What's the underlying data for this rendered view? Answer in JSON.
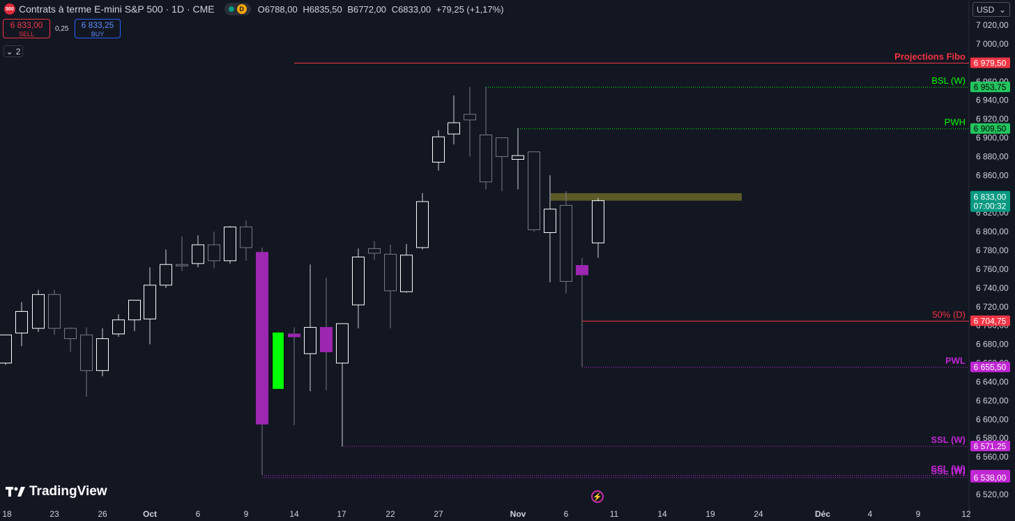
{
  "header": {
    "symbol_badge": "500",
    "title": "Contrats à terme E-mini S&P 500 · 1D · CME",
    "status_badge": "D",
    "ohlc": [
      {
        "k": "O",
        "v": "6788,00"
      },
      {
        "k": "H",
        "v": "6835,50"
      },
      {
        "k": "B",
        "v": "6772,00"
      },
      {
        "k": "C",
        "v": "6833,00"
      }
    ],
    "change": "+79,25 (+1,17%)"
  },
  "trade": {
    "sell_price": "6 833,00",
    "sell_label": "SELL",
    "spread": "0,25",
    "buy_price": "6 833,25",
    "buy_label": "BUY"
  },
  "indicators_toggle": "2",
  "currency": "USD",
  "brand": "TradingView",
  "colors": {
    "bg": "#131722",
    "up": "#ffffff",
    "magenta": "#9c27b0",
    "green": "#00ff00",
    "red": "#f23645",
    "teal": "#089981"
  },
  "chart_data": {
    "type": "candlestick",
    "y_axis": {
      "min": 6510,
      "max": 7030,
      "ticks": [
        "7 020,00",
        "7 000,00",
        "6 980,00",
        "6 960,00",
        "6 940,00",
        "6 920,00",
        "6 900,00",
        "6 880,00",
        "6 860,00",
        "6 840,00",
        "6 820,00",
        "6 800,00",
        "6 780,00",
        "6 760,00",
        "6 740,00",
        "6 720,00",
        "6 700,00",
        "6 680,00",
        "6 660,00",
        "6 640,00",
        "6 620,00",
        "6 600,00",
        "6 580,00",
        "6 560,00",
        "6 540,00",
        "6 520,00"
      ]
    },
    "x_axis": {
      "ticks": [
        "18",
        "23",
        "26",
        "Oct",
        "6",
        "9",
        "14",
        "17",
        "22",
        "27",
        "Nov",
        "6",
        "11",
        "14",
        "19",
        "24",
        "Déc",
        "4",
        "9",
        "12"
      ]
    },
    "candles": [
      {
        "o": 6660,
        "h": 6690,
        "l": 6658,
        "c": 6690,
        "color": "white"
      },
      {
        "o": 6692,
        "h": 6725,
        "l": 6678,
        "c": 6715,
        "color": "white"
      },
      {
        "o": 6697,
        "h": 6738,
        "l": 6693,
        "c": 6733,
        "color": "white"
      },
      {
        "o": 6733,
        "h": 6738,
        "l": 6690,
        "c": 6697,
        "color": "dark"
      },
      {
        "o": 6697,
        "h": 6698,
        "l": 6672,
        "c": 6686,
        "color": "dark"
      },
      {
        "o": 6690,
        "h": 6698,
        "l": 6624,
        "c": 6652,
        "color": "dark"
      },
      {
        "o": 6652,
        "h": 6697,
        "l": 6646,
        "c": 6686,
        "color": "white"
      },
      {
        "o": 6691,
        "h": 6712,
        "l": 6688,
        "c": 6706,
        "color": "white"
      },
      {
        "o": 6706,
        "h": 6727,
        "l": 6694,
        "c": 6727,
        "color": "white"
      },
      {
        "o": 6707,
        "h": 6762,
        "l": 6680,
        "c": 6743,
        "color": "white"
      },
      {
        "o": 6743,
        "h": 6781,
        "l": 6740,
        "c": 6765,
        "color": "white"
      },
      {
        "o": 6764,
        "h": 6795,
        "l": 6758,
        "c": 6765,
        "color": "dark"
      },
      {
        "o": 6766,
        "h": 6796,
        "l": 6762,
        "c": 6786,
        "color": "white"
      },
      {
        "o": 6786,
        "h": 6800,
        "l": 6761,
        "c": 6769,
        "color": "dark"
      },
      {
        "o": 6769,
        "h": 6806,
        "l": 6766,
        "c": 6805,
        "color": "white"
      },
      {
        "o": 6805,
        "h": 6812,
        "l": 6769,
        "c": 6783,
        "color": "dark"
      },
      {
        "o": 6778,
        "h": 6783,
        "l": 6541,
        "c": 6595,
        "color": "magenta"
      },
      {
        "o": 6632,
        "h": 6694,
        "l": 6632,
        "c": 6693,
        "color": "green"
      },
      {
        "o": 6691,
        "h": 6698,
        "l": 6594,
        "c": 6688,
        "color": "magenta"
      },
      {
        "o": 6670,
        "h": 6765,
        "l": 6630,
        "c": 6698,
        "color": "white"
      },
      {
        "o": 6698,
        "h": 6751,
        "l": 6631,
        "c": 6672,
        "color": "magenta"
      },
      {
        "o": 6660,
        "h": 6700,
        "l": 6571,
        "c": 6702,
        "color": "white"
      },
      {
        "o": 6722,
        "h": 6782,
        "l": 6697,
        "c": 6773,
        "color": "white"
      },
      {
        "o": 6777,
        "h": 6790,
        "l": 6770,
        "c": 6782,
        "color": "dark"
      },
      {
        "o": 6776,
        "h": 6786,
        "l": 6697,
        "c": 6737,
        "color": "dark"
      },
      {
        "o": 6736,
        "h": 6787,
        "l": 6735,
        "c": 6775,
        "color": "white"
      },
      {
        "o": 6783,
        "h": 6841,
        "l": 6781,
        "c": 6832,
        "color": "white"
      },
      {
        "o": 6874,
        "h": 6908,
        "l": 6865,
        "c": 6901,
        "color": "white"
      },
      {
        "o": 6904,
        "h": 6945,
        "l": 6893,
        "c": 6916,
        "color": "white"
      },
      {
        "o": 6919,
        "h": 6954,
        "l": 6880,
        "c": 6925,
        "color": "dark"
      },
      {
        "o": 6903,
        "h": 6954,
        "l": 6845,
        "c": 6853,
        "color": "dark"
      },
      {
        "o": 6880,
        "h": 6897,
        "l": 6843,
        "c": 6900,
        "color": "dark"
      },
      {
        "o": 6881,
        "h": 6910,
        "l": 6845,
        "c": 6877,
        "color": "white"
      },
      {
        "o": 6885,
        "h": 6885,
        "l": 6800,
        "c": 6802,
        "color": "dark"
      },
      {
        "o": 6799,
        "h": 6860,
        "l": 6746,
        "c": 6824,
        "color": "white"
      },
      {
        "o": 6828,
        "h": 6843,
        "l": 6734,
        "c": 6747,
        "color": "dark"
      },
      {
        "o": 6764,
        "h": 6772,
        "l": 6656,
        "c": 6754,
        "color": "magenta"
      },
      {
        "o": 6788,
        "h": 6836,
        "l": 6772,
        "c": 6833,
        "color": "white"
      }
    ],
    "levels": [
      {
        "label": "Projections Fibo",
        "value": "6 979,50",
        "y": 6979.5,
        "color": "#f23645",
        "style": "solid"
      },
      {
        "label": "BSL (W)",
        "value": "6 953,75",
        "y": 6953.75,
        "color": "#00ff00",
        "style": "dotted"
      },
      {
        "label": "PWH",
        "value": "6 909,50",
        "y": 6909.5,
        "color": "#00ff00",
        "style": "dotted"
      },
      {
        "label": "50% (D)",
        "value": "6 704,75",
        "y": 6704.75,
        "color": "#f23645",
        "style": "solid"
      },
      {
        "label": "PWL",
        "value": "6 655,50",
        "y": 6655.5,
        "color": "#c026d3",
        "style": "dotted"
      },
      {
        "label": "SSL (W)",
        "value": "6 571,25",
        "y": 6571.25,
        "color": "#c026d3",
        "style": "dotted"
      },
      {
        "label": "SSL (W)",
        "value": "6 540,25",
        "y": 6540.25,
        "color": "#c026d3",
        "style": "dotted"
      },
      {
        "label": "SSL (W)",
        "value": "6 538,00",
        "y": 6538,
        "color": "#c026d3",
        "style": "dotted"
      }
    ],
    "zone": {
      "from": 6833,
      "to": 6841,
      "color": "#5b5a28"
    },
    "last_price": {
      "value": "6 833,00",
      "countdown": "07:00:32",
      "color": "#089981"
    }
  }
}
